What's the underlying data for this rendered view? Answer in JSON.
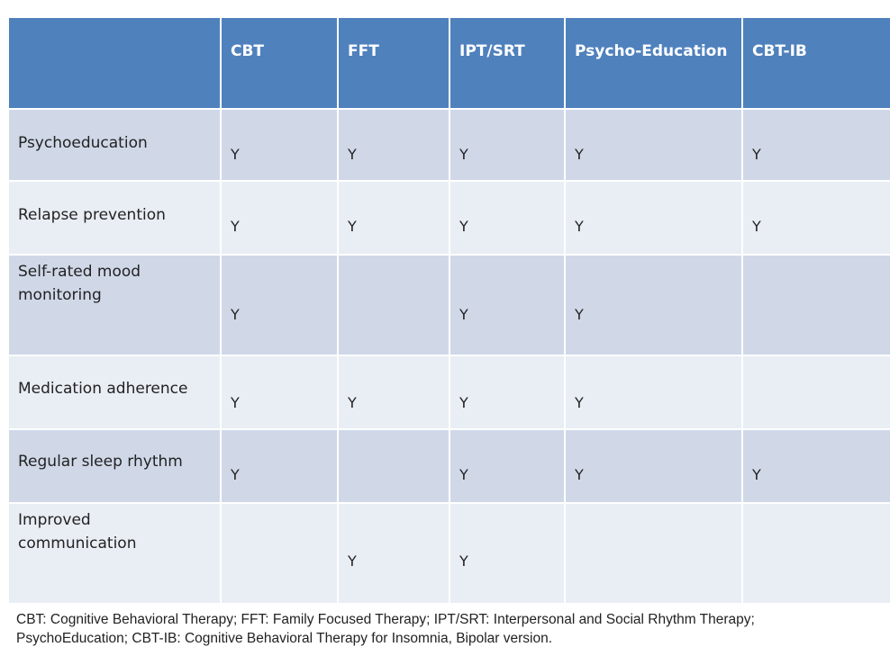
{
  "table": {
    "columns": [
      "CBT",
      "FFT",
      "IPT/SRT",
      "Psycho-Education",
      "CBT-IB"
    ],
    "rows": [
      {
        "label": "Psychoeducation",
        "cells": [
          "Y",
          "Y",
          "Y",
          "Y",
          "Y"
        ]
      },
      {
        "label": "Relapse prevention",
        "cells": [
          "Y",
          "Y",
          "Y",
          "Y",
          "Y"
        ]
      },
      {
        "label": "Self-rated mood monitoring",
        "cells": [
          "Y",
          "",
          "Y",
          "Y",
          ""
        ]
      },
      {
        "label": "Medication adherence",
        "cells": [
          "Y",
          "Y",
          "Y",
          "Y",
          ""
        ]
      },
      {
        "label": "Regular sleep rhythm",
        "cells": [
          "Y",
          "",
          "Y",
          "Y",
          "Y"
        ]
      },
      {
        "label": "Improved communication",
        "cells": [
          "",
          "Y",
          "Y",
          "",
          ""
        ]
      }
    ]
  },
  "footnote": "CBT: Cognitive Behavioral Therapy; FFT: Family Focused Therapy; IPT/SRT: Interpersonal and Social Rhythm Therapy; PsychoEducation; CBT-IB: Cognitive Behavioral Therapy for Insomnia, Bipolar version.",
  "colors": {
    "header": "#4f81bd",
    "row_dark": "#d0d8e8",
    "row_light": "#e9edf4"
  }
}
